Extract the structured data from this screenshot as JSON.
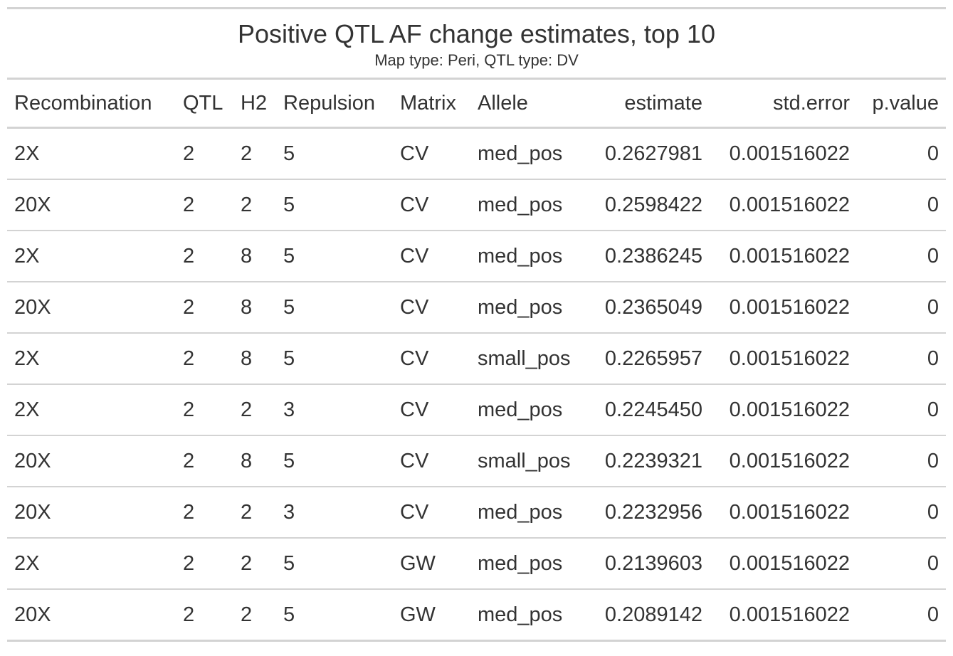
{
  "table": {
    "title": "Positive QTL AF change estimates, top 10",
    "subtitle": "Map type: Peri, QTL type: DV",
    "columns": [
      "Recombination",
      "QTL",
      "H2",
      "Repulsion",
      "Matrix",
      "Allele",
      "estimate",
      "std.error",
      "p.value"
    ],
    "rows": [
      [
        "2X",
        "2",
        "2",
        "5",
        "CV",
        "med_pos",
        "0.2627981",
        "0.001516022",
        "0"
      ],
      [
        "20X",
        "2",
        "2",
        "5",
        "CV",
        "med_pos",
        "0.2598422",
        "0.001516022",
        "0"
      ],
      [
        "2X",
        "2",
        "8",
        "5",
        "CV",
        "med_pos",
        "0.2386245",
        "0.001516022",
        "0"
      ],
      [
        "20X",
        "2",
        "8",
        "5",
        "CV",
        "med_pos",
        "0.2365049",
        "0.001516022",
        "0"
      ],
      [
        "2X",
        "2",
        "8",
        "5",
        "CV",
        "small_pos",
        "0.2265957",
        "0.001516022",
        "0"
      ],
      [
        "2X",
        "2",
        "2",
        "3",
        "CV",
        "med_pos",
        "0.2245450",
        "0.001516022",
        "0"
      ],
      [
        "20X",
        "2",
        "8",
        "5",
        "CV",
        "small_pos",
        "0.2239321",
        "0.001516022",
        "0"
      ],
      [
        "20X",
        "2",
        "2",
        "3",
        "CV",
        "med_pos",
        "0.2232956",
        "0.001516022",
        "0"
      ],
      [
        "2X",
        "2",
        "2",
        "5",
        "GW",
        "med_pos",
        "0.2139603",
        "0.001516022",
        "0"
      ],
      [
        "20X",
        "2",
        "2",
        "5",
        "GW",
        "med_pos",
        "0.2089142",
        "0.001516022",
        "0"
      ]
    ]
  }
}
